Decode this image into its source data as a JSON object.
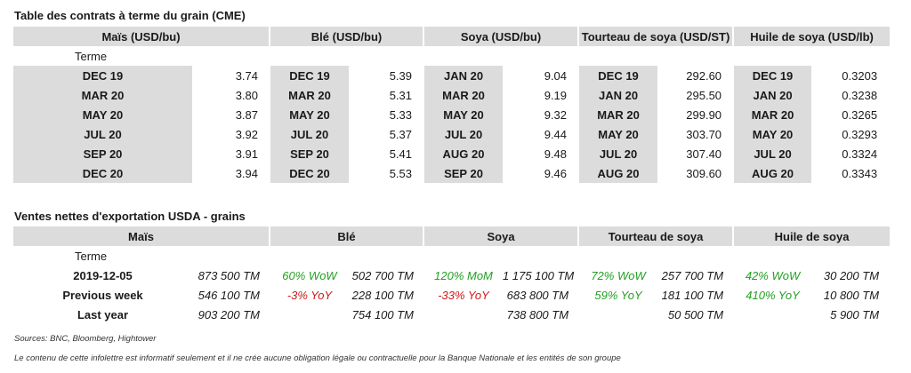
{
  "futures": {
    "title": "Table des contrats à terme du grain (CME)",
    "term_label": "Terme",
    "columns": [
      {
        "header": "Maïs (USD/bu)",
        "rows": [
          [
            "DEC 19",
            "3.74"
          ],
          [
            "MAR 20",
            "3.80"
          ],
          [
            "MAY 20",
            "3.87"
          ],
          [
            "JUL 20",
            "3.92"
          ],
          [
            "SEP 20",
            "3.91"
          ],
          [
            "DEC 20",
            "3.94"
          ]
        ]
      },
      {
        "header": "Blé (USD/bu)",
        "rows": [
          [
            "DEC 19",
            "5.39"
          ],
          [
            "MAR 20",
            "5.31"
          ],
          [
            "MAY 20",
            "5.33"
          ],
          [
            "JUL 20",
            "5.37"
          ],
          [
            "SEP 20",
            "5.41"
          ],
          [
            "DEC 20",
            "5.53"
          ]
        ]
      },
      {
        "header": "Soya (USD/bu)",
        "rows": [
          [
            "JAN 20",
            "9.04"
          ],
          [
            "MAR 20",
            "9.19"
          ],
          [
            "MAY 20",
            "9.32"
          ],
          [
            "JUL 20",
            "9.44"
          ],
          [
            "AUG 20",
            "9.48"
          ],
          [
            "SEP 20",
            "9.46"
          ]
        ]
      },
      {
        "header": "Tourteau de soya (USD/ST)",
        "rows": [
          [
            "DEC 19",
            "292.60"
          ],
          [
            "JAN 20",
            "295.50"
          ],
          [
            "MAR 20",
            "299.90"
          ],
          [
            "MAY 20",
            "303.70"
          ],
          [
            "JUL 20",
            "307.40"
          ],
          [
            "AUG 20",
            "309.60"
          ]
        ]
      },
      {
        "header": "Huile de soya (USD/lb)",
        "rows": [
          [
            "DEC 19",
            "0.3203"
          ],
          [
            "JAN 20",
            "0.3238"
          ],
          [
            "MAR 20",
            "0.3265"
          ],
          [
            "MAY 20",
            "0.3293"
          ],
          [
            "JUL 20",
            "0.3324"
          ],
          [
            "AUG 20",
            "0.3343"
          ]
        ]
      }
    ]
  },
  "exports": {
    "title": "Ventes nettes d'exportation USDA - grains",
    "term_label": "Terme",
    "headers": [
      "Maïs",
      "Blé",
      "Soya",
      "Tourteau de soya",
      "Huile de soya"
    ],
    "rows": [
      {
        "label": "2019-12-05",
        "cells": [
          {
            "val": "873 500 TM"
          },
          {
            "pct": "60% WoW",
            "color": "green"
          },
          {
            "val": "502 700 TM"
          },
          {
            "pct": "120% MoM",
            "color": "green"
          },
          {
            "val": "1 175 100 TM"
          },
          {
            "pct": "72% WoW",
            "color": "green"
          },
          {
            "val": "257 700 TM"
          },
          {
            "pct": "42% WoW",
            "color": "green"
          },
          {
            "val": "30 200 TM"
          }
        ]
      },
      {
        "label": "Previous week",
        "cells": [
          {
            "val": "546 100 TM"
          },
          {
            "pct": "-3% YoY",
            "color": "red"
          },
          {
            "val": "228 100 TM"
          },
          {
            "pct": "-33% YoY",
            "color": "red"
          },
          {
            "val": "683 800 TM"
          },
          {
            "pct": "59% YoY",
            "color": "green"
          },
          {
            "val": "181 100 TM"
          },
          {
            "pct": "410% YoY",
            "color": "green"
          },
          {
            "val": "10 800 TM"
          }
        ]
      },
      {
        "label": "Last year",
        "cells": [
          {
            "val": "903 200 TM"
          },
          {
            "pct": "",
            "color": "green"
          },
          {
            "val": "754 100 TM"
          },
          {
            "pct": "",
            "color": "green"
          },
          {
            "val": "738 800 TM"
          },
          {
            "pct": "",
            "color": "green"
          },
          {
            "val": "50 500 TM"
          },
          {
            "pct": "",
            "color": "green"
          },
          {
            "val": "5 900 TM"
          }
        ]
      }
    ]
  },
  "footer": {
    "sources": "Sources: BNC, Bloomberg, Hightower",
    "disclaimer": "Le contenu de cette infolettre est informatif seulement et il ne crée aucune obligation légale ou contractuelle pour la Banque Nationale et les entités de son groupe"
  },
  "colors": {
    "header_bg": "#dcdcdc",
    "positive": "#22a022",
    "negative": "#d01818"
  }
}
